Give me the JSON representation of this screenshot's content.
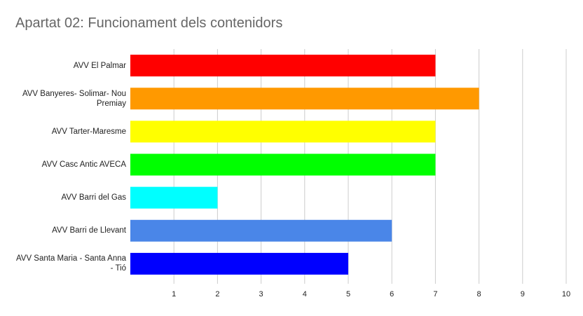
{
  "chart_data": {
    "type": "hbar",
    "title": "Apartat 02: Funcionament dels contenidors",
    "categories": [
      "AVV El Palmar",
      "AVV Banyeres- Solimar- Nou Premiay",
      "AVV Tarter-Maresme",
      "AVV Casc Antic AVECA",
      "AVV Barri del Gas",
      "AVV Barri de Llevant",
      "AVV Santa Maria - Santa Anna - Tió"
    ],
    "values": [
      7,
      8,
      7,
      7,
      2,
      6,
      5
    ],
    "colors": [
      "#ff0000",
      "#ff9900",
      "#ffff00",
      "#00ff00",
      "#00ffff",
      "#4a86e8",
      "#0000ff"
    ],
    "xlim": [
      0,
      10
    ],
    "xticks": [
      1,
      2,
      3,
      4,
      5,
      6,
      7,
      8,
      9,
      10
    ],
    "grid": true
  }
}
